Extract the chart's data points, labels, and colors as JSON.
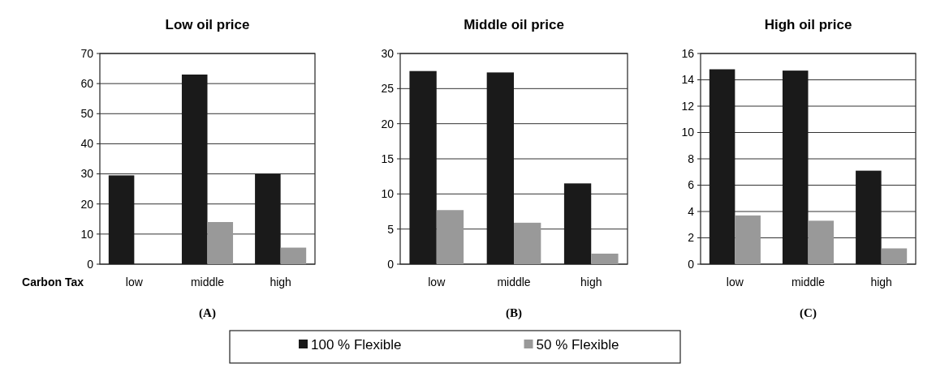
{
  "chart_data": [
    {
      "type": "bar",
      "title": "Low oil price",
      "xlabel": "Carbon Tax",
      "categories": [
        "low",
        "middle",
        "high"
      ],
      "series": [
        {
          "color": "#1a1a1a",
          "values": [
            29.5,
            63,
            30
          ]
        },
        {
          "color": "#999999",
          "values": [
            0,
            14,
            5.5
          ]
        }
      ],
      "ylim": [
        0,
        70
      ],
      "yticks": [
        0,
        10,
        20,
        30,
        40,
        50,
        60,
        70
      ],
      "grid": "y",
      "legend": false,
      "annotations": [
        "(A)"
      ]
    },
    {
      "type": "bar",
      "title": "Middle oil price",
      "categories": [
        "low",
        "middle",
        "high"
      ],
      "series": [
        {
          "name": "100 % Flexible",
          "color": "#1a1a1a",
          "values": [
            27.5,
            27.3,
            11.5
          ]
        },
        {
          "name": "50 % Flexible",
          "color": "#999999",
          "values": [
            7.7,
            5.9,
            1.5
          ]
        }
      ],
      "ylim": [
        0,
        30
      ],
      "yticks": [
        0,
        5,
        10,
        15,
        20,
        25,
        30
      ],
      "grid": "y",
      "legend": "bottom",
      "annotations": [
        "(B)"
      ]
    },
    {
      "type": "bar",
      "title": "High oil price",
      "categories": [
        "low",
        "middle",
        "high"
      ],
      "series": [
        {
          "color": "#1a1a1a",
          "values": [
            14.8,
            14.7,
            7.1
          ]
        },
        {
          "color": "#999999",
          "values": [
            3.7,
            3.3,
            1.2
          ]
        }
      ],
      "ylim": [
        0,
        16
      ],
      "yticks": [
        0,
        2,
        4,
        6,
        8,
        10,
        12,
        14,
        16
      ],
      "grid": "y",
      "legend": false,
      "annotations": [
        "(C)"
      ]
    }
  ]
}
